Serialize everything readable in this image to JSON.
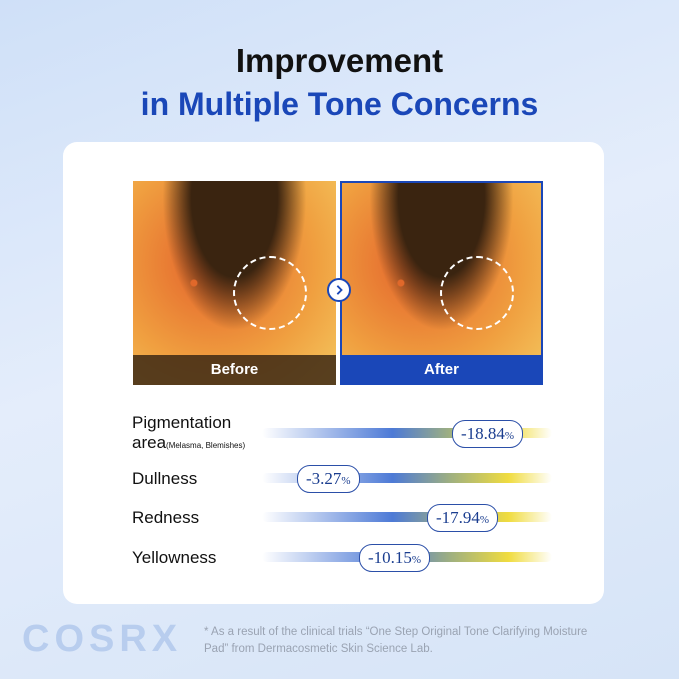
{
  "header": {
    "title_line1": "Improvement",
    "title_line2": "in Multiple Tone Concerns"
  },
  "images": {
    "before": "Before",
    "after": "After"
  },
  "metrics": [
    {
      "label": "Pigmentation area",
      "sub": "(Melasma, Blemishes)",
      "value": "-18.84",
      "unit": "%"
    },
    {
      "label": "Dullness",
      "value": "-3.27",
      "unit": "%"
    },
    {
      "label": "Redness",
      "value": "-17.94",
      "unit": "%"
    },
    {
      "label": "Yellowness",
      "value": "-10.15",
      "unit": "%"
    }
  ],
  "footer": {
    "brand": "COSRX",
    "note": "* As a result of the clinical trials “One Step Original Tone Clarifying Moisture Pad” from Dermacosmetic Skin Science Lab."
  }
}
